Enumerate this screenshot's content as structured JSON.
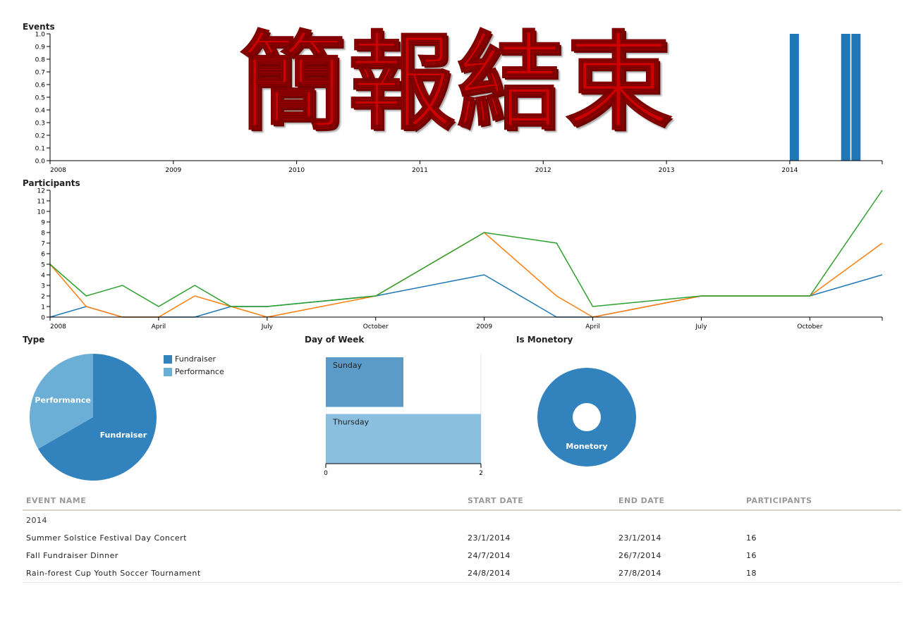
{
  "colors": {
    "blue": "#1f77b4",
    "orange": "#ff7f0e",
    "green": "#2ca02c",
    "pie_fundraiser": "#3182bd",
    "pie_performance": "#6baed6",
    "row_sunday": "#5b9bc8",
    "row_thursday": "#8abfe0",
    "overlay_red": "#cc0000"
  },
  "overlay": {
    "text": "簡報結束"
  },
  "chart_data": [
    {
      "type": "bar",
      "name": "events-chart",
      "title": "Events",
      "x_ticks": [
        "2008",
        "2009",
        "2010",
        "2011",
        "2012",
        "2013",
        "2014"
      ],
      "y_ticks": [
        "0.0",
        "0.1",
        "0.2",
        "0.3",
        "0.4",
        "0.5",
        "0.6",
        "0.7",
        "0.8",
        "0.9",
        "1.0"
      ],
      "xlim": [
        "2008-01-01",
        "2014-10-01"
      ],
      "ylim": [
        0,
        1
      ],
      "bars": [
        {
          "date": "2014-01-01",
          "value": 1
        },
        {
          "date": "2014-06-01",
          "value": 1
        },
        {
          "date": "2014-07-01",
          "value": 1
        }
      ]
    },
    {
      "type": "line",
      "name": "participants-chart",
      "title": "Participants",
      "x_ticks": [
        "2008",
        "April",
        "July",
        "October",
        "2009",
        "April",
        "July",
        "October"
      ],
      "y_ticks": [
        "0",
        "1",
        "2",
        "3",
        "4",
        "5",
        "6",
        "7",
        "8",
        "9",
        "10",
        "11",
        "12"
      ],
      "xlim": [
        "2008-01",
        "2009-12"
      ],
      "ylim": [
        0,
        12
      ],
      "x": [
        "2008-01",
        "2008-02",
        "2008-03",
        "2008-04",
        "2008-05",
        "2008-06",
        "2008-07",
        "2008-10",
        "2009-01",
        "2009-03",
        "2009-04",
        "2009-07",
        "2009-10",
        "2009-12"
      ],
      "series": [
        {
          "color": "#1f77b4",
          "values": [
            0,
            1,
            0,
            0,
            0,
            1,
            1,
            2,
            4,
            0,
            0,
            2,
            2,
            4
          ]
        },
        {
          "color": "#ff7f0e",
          "values": [
            5,
            1,
            0,
            0,
            2,
            1,
            0,
            2,
            8,
            2,
            0,
            2,
            2,
            7
          ]
        },
        {
          "color": "#2ca02c",
          "values": [
            5,
            2,
            3,
            1,
            3,
            1,
            1,
            2,
            8,
            7,
            1,
            2,
            2,
            12
          ]
        }
      ]
    },
    {
      "type": "pie",
      "name": "type-chart",
      "title": "Type",
      "slices": [
        {
          "label": "Fundraiser",
          "value": 2,
          "color": "#3182bd"
        },
        {
          "label": "Performance",
          "value": 1,
          "color": "#6baed6"
        }
      ],
      "legend": [
        "Fundraiser",
        "Performance"
      ],
      "legend_placement": "right"
    },
    {
      "type": "bar",
      "orientation": "horizontal",
      "name": "day-of-week-chart",
      "title": "Day of Week",
      "categories": [
        "Sunday",
        "Thursday"
      ],
      "values": [
        1,
        2
      ],
      "xlim": [
        0,
        2
      ],
      "x_ticks": [
        "0",
        "2"
      ]
    },
    {
      "type": "pie",
      "name": "is-monetory-chart",
      "title": "Is Monetory",
      "donut": true,
      "slices": [
        {
          "label": "Monetory",
          "value": 3,
          "color": "#3182bd"
        }
      ]
    }
  ],
  "table": {
    "columns": [
      "Event Name",
      "Start Date",
      "End Date",
      "Participants"
    ],
    "group_label": "2014",
    "rows": [
      {
        "name": "Summer Solstice Festival Day Concert",
        "start": "23/1/2014",
        "end": "23/1/2014",
        "participants": "16"
      },
      {
        "name": "Fall Fundraiser Dinner",
        "start": "24/7/2014",
        "end": "26/7/2014",
        "participants": "16"
      },
      {
        "name": "Rain-forest Cup Youth Soccer Tournament",
        "start": "24/8/2014",
        "end": "27/8/2014",
        "participants": "18"
      }
    ]
  }
}
